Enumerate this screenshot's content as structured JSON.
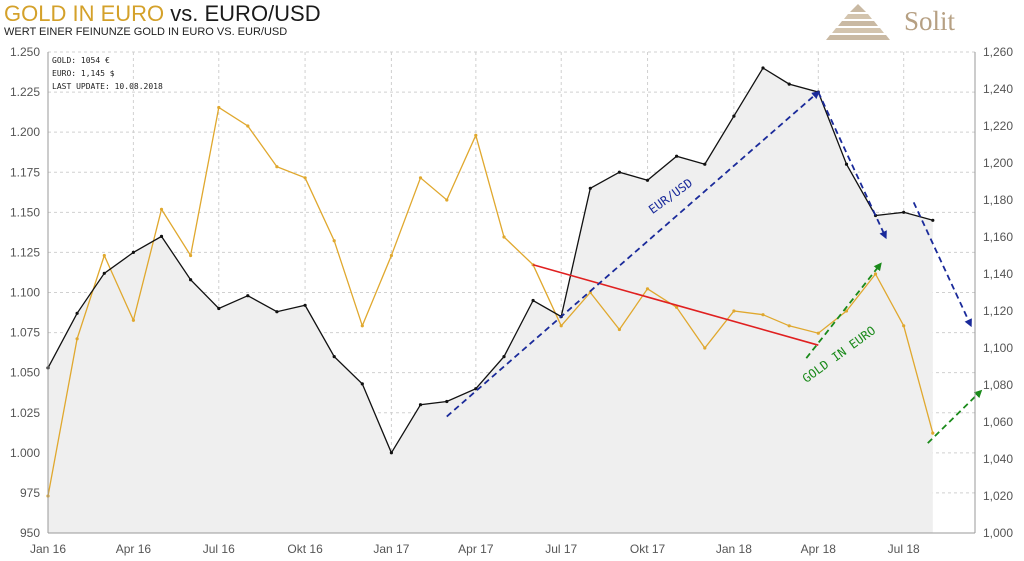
{
  "header": {
    "title_gold": "GOLD IN EURO",
    "title_rest": "vs. EURO/USD",
    "subtitle": "WERT  EINER FEINUNZE GOLD IN EURO VS. EUR/USD"
  },
  "logo": {
    "text": "Solit",
    "icon": "pyramid-icon"
  },
  "info_box": {
    "gold": "GOLD: 1054 €",
    "euro": "EURO: 1,145 $",
    "last_update": "LAST UPDATE: 10.08.2018"
  },
  "colors": {
    "gold_line": "#e0a82e",
    "eurusd_line": "#111111",
    "area_fill": "#efefef",
    "trend_red": "#e02020",
    "trend_blue": "#1a2a9a",
    "trend_green": "#1a8a1a"
  },
  "chart_data": {
    "type": "line",
    "title": "GOLD IN EURO vs. EURO/USD",
    "x_ticks": [
      "Jan 16",
      "Apr 16",
      "Jul 16",
      "Okt 16",
      "Jan 17",
      "Apr 17",
      "Jul 17",
      "Okt 17",
      "Jan 18",
      "Apr 18",
      "Jul 18"
    ],
    "left_axis": {
      "series": "EUR/USD",
      "ylim": [
        0.95,
        1.25
      ],
      "ticks": [
        "1.250",
        "1.225",
        "1.200",
        "1.175",
        "1.150",
        "1.125",
        "1.100",
        "1.075",
        "1.050",
        "1.025",
        "1.000",
        "975",
        "950"
      ]
    },
    "right_axis": {
      "series": "GOLD IN EURO",
      "ylim": [
        1000,
        1260
      ],
      "ticks": [
        "1,260",
        "1,240",
        "1,220",
        "1,200",
        "1,180",
        "1,160",
        "1,140",
        "1,120",
        "1,100",
        "1,080",
        "1,060",
        "1,040",
        "1,020",
        "1,000"
      ]
    },
    "grid": true,
    "series": [
      {
        "name": "EUR/USD",
        "axis": "left",
        "x": [
          "2016-01",
          "2016-02",
          "2016-03",
          "2016-04",
          "2016-05",
          "2016-06",
          "2016-07",
          "2016-08",
          "2016-09",
          "2016-10",
          "2016-11",
          "2016-12",
          "2017-01",
          "2017-02",
          "2017-03",
          "2017-04",
          "2017-05",
          "2017-06",
          "2017-07",
          "2017-08",
          "2017-09",
          "2017-10",
          "2017-11",
          "2017-12",
          "2018-01",
          "2018-02",
          "2018-03",
          "2018-04",
          "2018-05",
          "2018-06",
          "2018-07",
          "2018-08"
        ],
        "values": [
          1.053,
          1.087,
          1.112,
          1.125,
          1.135,
          1.108,
          1.09,
          1.098,
          1.088,
          1.092,
          1.06,
          1.043,
          1.0,
          1.03,
          1.032,
          1.04,
          1.06,
          1.095,
          1.085,
          1.165,
          1.175,
          1.17,
          1.185,
          1.18,
          1.21,
          1.24,
          1.23,
          1.225,
          1.18,
          1.148,
          1.15,
          1.145
        ]
      },
      {
        "name": "GOLD IN EURO",
        "axis": "right",
        "x": [
          "2016-01",
          "2016-02",
          "2016-03",
          "2016-04",
          "2016-05",
          "2016-06",
          "2016-07",
          "2016-08",
          "2016-09",
          "2016-10",
          "2016-11",
          "2016-12",
          "2017-01",
          "2017-02",
          "2017-03",
          "2017-04",
          "2017-05",
          "2017-06",
          "2017-07",
          "2017-08",
          "2017-09",
          "2017-10",
          "2017-11",
          "2017-12",
          "2018-01",
          "2018-02",
          "2018-03",
          "2018-04",
          "2018-05",
          "2018-06",
          "2018-07",
          "2018-08"
        ],
        "values": [
          1020,
          1105,
          1150,
          1115,
          1175,
          1150,
          1230,
          1220,
          1198,
          1192,
          1158,
          1112,
          1150,
          1192,
          1180,
          1215,
          1160,
          1145,
          1112,
          1130,
          1110,
          1132,
          1122,
          1100,
          1120,
          1118,
          1112,
          1108,
          1120,
          1140,
          1112,
          1054
        ]
      }
    ],
    "annotations": [
      {
        "label": "EUR/USD",
        "color": "#1a2a9a"
      },
      {
        "label": "GOLD IN EURO",
        "color": "#1a8a1a"
      }
    ]
  }
}
